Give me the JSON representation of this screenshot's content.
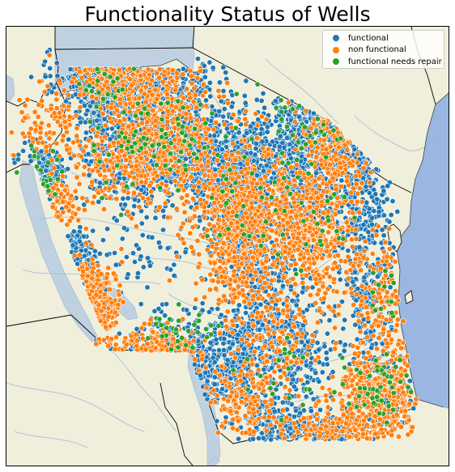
{
  "title": "Functionality Status of Wells",
  "colors": {
    "land": "#f0efdc",
    "lake": "#bfd1e0",
    "ocean": "#99b7e0",
    "river": "#9cb8d8",
    "border": "#000000",
    "coastline": "#444444"
  },
  "legend": {
    "items": [
      {
        "label": "functional",
        "color": "#1f77b4"
      },
      {
        "label": "non functional",
        "color": "#ff7f0e"
      },
      {
        "label": "functional needs repair",
        "color": "#2ca02c"
      }
    ]
  },
  "chart_data": {
    "type": "scatter",
    "title": "Functionality Status of Wells",
    "series": [
      {
        "name": "functional",
        "clusters": [
          [
            0.23,
            0.08,
            0.05,
            0.03,
            300
          ],
          [
            0.36,
            0.13,
            0.05,
            0.035,
            240
          ],
          [
            0.22,
            0.15,
            0.05,
            0.06,
            320
          ],
          [
            0.4,
            0.26,
            0.08,
            0.06,
            500
          ],
          [
            0.3,
            0.3,
            0.06,
            0.05,
            400
          ],
          [
            0.51,
            0.33,
            0.05,
            0.05,
            450
          ],
          [
            0.53,
            0.42,
            0.04,
            0.05,
            350
          ],
          [
            0.62,
            0.3,
            0.04,
            0.1,
            300
          ],
          [
            0.72,
            0.22,
            0.06,
            0.08,
            350
          ],
          [
            0.8,
            0.35,
            0.04,
            0.08,
            250
          ],
          [
            0.82,
            0.6,
            0.03,
            0.09,
            220
          ],
          [
            0.58,
            0.62,
            0.05,
            0.08,
            320
          ],
          [
            0.5,
            0.77,
            0.05,
            0.05,
            280
          ],
          [
            0.37,
            0.77,
            0.05,
            0.05,
            200
          ],
          [
            0.18,
            0.63,
            0.02,
            0.05,
            120
          ],
          [
            0.16,
            0.5,
            0.015,
            0.02,
            60
          ],
          [
            0.1,
            0.35,
            0.02,
            0.02,
            60
          ],
          [
            0.08,
            0.32,
            0.03,
            0.03,
            100
          ],
          [
            0.65,
            0.74,
            0.04,
            0.05,
            180
          ],
          [
            0.72,
            0.92,
            0.05,
            0.03,
            150
          ],
          [
            0.85,
            0.84,
            0.04,
            0.04,
            160
          ],
          [
            0.59,
            0.9,
            0.04,
            0.04,
            150
          ],
          [
            0.3,
            0.45,
            0.1,
            0.1,
            120
          ],
          [
            0.7,
            0.5,
            0.1,
            0.1,
            150
          ]
        ]
      },
      {
        "name": "non functional",
        "clusters": [
          [
            0.24,
            0.1,
            0.05,
            0.04,
            150
          ],
          [
            0.35,
            0.15,
            0.06,
            0.04,
            150
          ],
          [
            0.36,
            0.25,
            0.08,
            0.06,
            300
          ],
          [
            0.27,
            0.3,
            0.07,
            0.05,
            250
          ],
          [
            0.55,
            0.43,
            0.06,
            0.06,
            400
          ],
          [
            0.68,
            0.44,
            0.05,
            0.06,
            300
          ],
          [
            0.74,
            0.26,
            0.04,
            0.08,
            200
          ],
          [
            0.85,
            0.82,
            0.05,
            0.05,
            400
          ],
          [
            0.19,
            0.64,
            0.03,
            0.05,
            200
          ],
          [
            0.34,
            0.75,
            0.04,
            0.03,
            150
          ],
          [
            0.52,
            0.56,
            0.05,
            0.05,
            180
          ],
          [
            0.53,
            0.85,
            0.05,
            0.04,
            150
          ],
          [
            0.76,
            0.93,
            0.06,
            0.03,
            150
          ],
          [
            0.71,
            0.55,
            0.05,
            0.05,
            150
          ],
          [
            0.85,
            0.6,
            0.03,
            0.06,
            120
          ],
          [
            0.6,
            0.7,
            0.05,
            0.05,
            120
          ],
          [
            0.12,
            0.4,
            0.03,
            0.03,
            60
          ],
          [
            0.09,
            0.22,
            0.03,
            0.04,
            80
          ],
          [
            0.45,
            0.35,
            0.1,
            0.08,
            150
          ]
        ]
      },
      {
        "name": "functional needs repair",
        "clusters": [
          [
            0.3,
            0.28,
            0.08,
            0.06,
            50
          ],
          [
            0.37,
            0.25,
            0.06,
            0.05,
            40
          ],
          [
            0.66,
            0.22,
            0.05,
            0.05,
            35
          ],
          [
            0.56,
            0.4,
            0.06,
            0.06,
            30
          ],
          [
            0.84,
            0.82,
            0.04,
            0.04,
            50
          ],
          [
            0.38,
            0.7,
            0.04,
            0.03,
            30
          ],
          [
            0.06,
            0.36,
            0.02,
            0.03,
            20
          ],
          [
            0.22,
            0.12,
            0.04,
            0.04,
            20
          ],
          [
            0.7,
            0.45,
            0.05,
            0.05,
            25
          ],
          [
            0.85,
            0.6,
            0.03,
            0.05,
            15
          ],
          [
            0.6,
            0.8,
            0.05,
            0.05,
            20
          ]
        ]
      }
    ]
  }
}
